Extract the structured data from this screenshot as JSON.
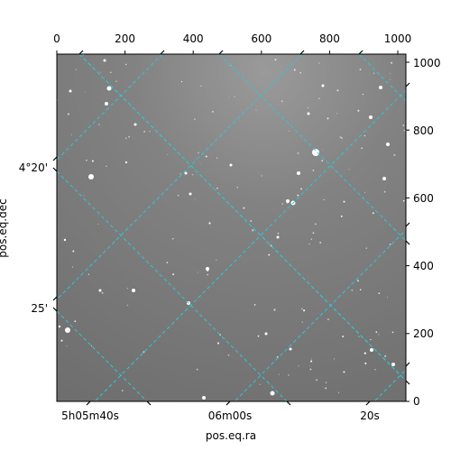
{
  "axes": {
    "xlabel": "pos.eq.ra",
    "ylabel": "pos.eq.dec",
    "top_ticks": [
      "0",
      "200",
      "400",
      "600",
      "800",
      "1000"
    ],
    "right_ticks": [
      "0",
      "200",
      "400",
      "600",
      "800",
      "1000"
    ],
    "bottom_ticks": [
      "5h05m40s",
      "06m00s",
      "20s"
    ],
    "left_ticks": [
      "4°20'",
      "25'"
    ]
  },
  "pixel_range": {
    "x": [
      0,
      1024
    ],
    "y": [
      0,
      1024
    ]
  },
  "image": {
    "background": "gray star field",
    "grid_color": "#2ec8d8"
  }
}
